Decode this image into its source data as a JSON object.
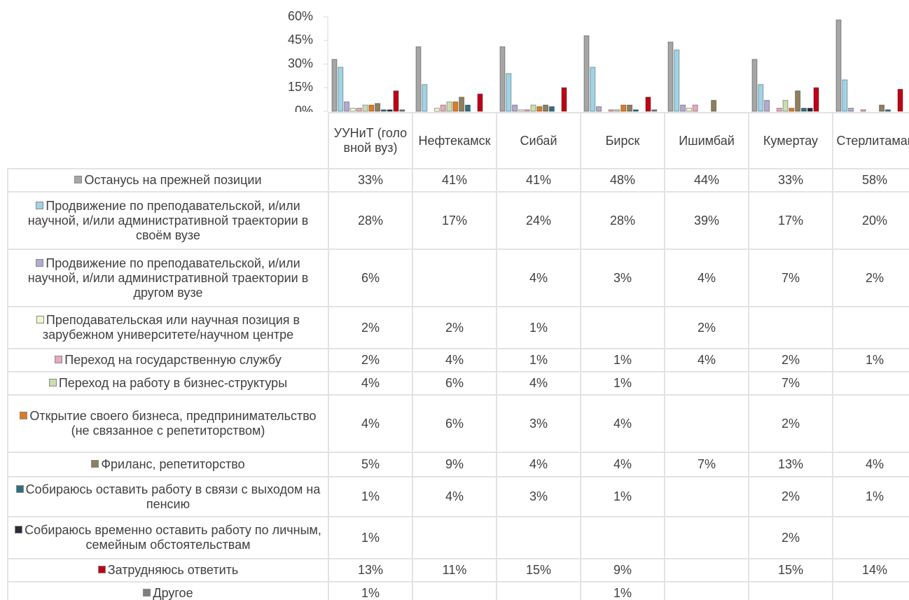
{
  "chart_data": {
    "type": "bar",
    "categories": [
      "УУНиТ (головной вуз)",
      "Нефтекамск",
      "Сибай",
      "Бирск",
      "Ишимбай",
      "Кумертау",
      "Стерлитамак"
    ],
    "ylim": [
      0,
      60
    ],
    "yticks": [
      {
        "value": 0,
        "label": "0%"
      },
      {
        "value": 15,
        "label": "15%"
      },
      {
        "value": 30,
        "label": "30%"
      },
      {
        "value": 45,
        "label": "45%"
      },
      {
        "value": 60,
        "label": "60%"
      }
    ],
    "series": [
      {
        "name": "Останусь на прежней позиции",
        "color": "#a6a6a6",
        "values": [
          33,
          41,
          41,
          48,
          44,
          33,
          58
        ],
        "value_labels": [
          "33%",
          "41%",
          "41%",
          "48%",
          "44%",
          "33%",
          "58%"
        ]
      },
      {
        "name": "Продвижение по преподавательской, и/или научной, и/или административной траектории в своём вузе",
        "color": "#9fd4e6",
        "values": [
          28,
          17,
          24,
          28,
          39,
          17,
          20
        ],
        "value_labels": [
          "28%",
          "17%",
          "24%",
          "28%",
          "39%",
          "17%",
          "20%"
        ]
      },
      {
        "name": "Продвижение по преподавательской, и/или научной, и/или административной траектории в другом вузе",
        "color": "#b4a9cf",
        "values": [
          6,
          null,
          4,
          3,
          4,
          7,
          2
        ],
        "value_labels": [
          "6%",
          null,
          "4%",
          "3%",
          "4%",
          "7%",
          "2%"
        ]
      },
      {
        "name": "Преподавательская или научная позиция в зарубежном университете/научном центре",
        "color": "#f2f6cc",
        "values": [
          2,
          2,
          1,
          null,
          2,
          null,
          null
        ],
        "value_labels": [
          "2%",
          "2%",
          "1%",
          null,
          "2%",
          null,
          null
        ]
      },
      {
        "name": "Переход на государственную службу",
        "color": "#e8a9ba",
        "values": [
          2,
          4,
          1,
          1,
          4,
          2,
          1
        ],
        "value_labels": [
          "2%",
          "4%",
          "1%",
          "1%",
          "4%",
          "2%",
          "1%"
        ]
      },
      {
        "name": "Переход на работу в бизнес-структуры",
        "color": "#cadeb2",
        "values": [
          4,
          6,
          4,
          1,
          null,
          7,
          null
        ],
        "value_labels": [
          "4%",
          "6%",
          "4%",
          "1%",
          null,
          "7%",
          null
        ]
      },
      {
        "name": "Открытие своего бизнеса, предпринимательство (не связанное с репетиторством)",
        "color": "#e07b22",
        "values": [
          4,
          6,
          3,
          4,
          null,
          2,
          null
        ],
        "value_labels": [
          "4%",
          "6%",
          "3%",
          "4%",
          null,
          "2%",
          null
        ]
      },
      {
        "name": "Фриланс, репетиторство",
        "color": "#8e7f60",
        "values": [
          5,
          9,
          4,
          4,
          7,
          13,
          4
        ],
        "value_labels": [
          "5%",
          "9%",
          "4%",
          "4%",
          "7%",
          "13%",
          "4%"
        ]
      },
      {
        "name": "Собираюсь оставить работу в связи с выходом на пенсию",
        "color": "#2e6f80",
        "values": [
          1,
          4,
          3,
          1,
          null,
          2,
          1
        ],
        "value_labels": [
          "1%",
          "4%",
          "3%",
          "1%",
          null,
          "2%",
          "1%"
        ]
      },
      {
        "name": "Собираюсь временно оставить работу по личным, семейным обстоятельствам",
        "color": "#2b2b3b",
        "values": [
          1,
          null,
          null,
          null,
          null,
          2,
          null
        ],
        "value_labels": [
          "1%",
          null,
          null,
          null,
          null,
          "2%",
          null
        ]
      },
      {
        "name": "Затрудняюсь ответить",
        "color": "#c00018",
        "values": [
          13,
          11,
          15,
          9,
          null,
          15,
          14
        ],
        "value_labels": [
          "13%",
          "11%",
          "15%",
          "9%",
          null,
          "15%",
          "14%"
        ]
      },
      {
        "name": "Другое",
        "color": "#7f7f7f",
        "values": [
          1,
          null,
          null,
          1,
          null,
          null,
          null
        ],
        "value_labels": [
          "1%",
          null,
          null,
          "1%",
          null,
          null,
          null
        ]
      }
    ]
  }
}
